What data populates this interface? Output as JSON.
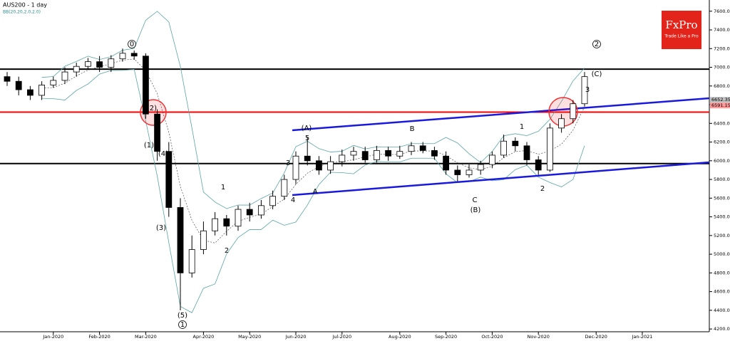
{
  "chart_data": {
    "type": "candlestick",
    "title": "AUS200 - 1 day",
    "indicator": "BB(20,20,2.0,2.0)",
    "logo": {
      "brand": "FxPro",
      "tagline": "Trade Like a Pro"
    },
    "categories": [
      null,
      null,
      null,
      null,
      "Jan-2020",
      null,
      null,
      null,
      "Feb-2020",
      null,
      null,
      null,
      "Mar-2020",
      null,
      null,
      null,
      null,
      "Apr-2020",
      null,
      null,
      null,
      "May-2020",
      null,
      null,
      null,
      "Jun-2020",
      null,
      null,
      null,
      "Jul-2020",
      null,
      null,
      null,
      null,
      "Aug-2020",
      null,
      null,
      null,
      "Sep-2020",
      null,
      null,
      null,
      "Oct-2020",
      null,
      null,
      null,
      "Nov-2020",
      null,
      null,
      null,
      null,
      "Dec-2020",
      null,
      null,
      null,
      "Jan-2021",
      null,
      null,
      null,
      null,
      null
    ],
    "open": [
      6900,
      6850,
      6760,
      6700,
      6810,
      6860,
      6950,
      7010,
      7060,
      7000,
      7090,
      7150,
      7120,
      6500,
      6100,
      5500,
      4800,
      5050,
      5250,
      5380,
      5300,
      5480,
      5420,
      5520,
      5620,
      5800,
      6050,
      6000,
      5900,
      5990,
      6060,
      6100,
      6010,
      6110,
      6050,
      6100,
      6160,
      6110,
      6050,
      5900,
      5850,
      5900,
      5960,
      6060,
      6210,
      6160,
      6010,
      5900,
      6350,
      6450,
      6610,
      null,
      null,
      null,
      null,
      null,
      null,
      null,
      null,
      null,
      null
    ],
    "high": [
      6950,
      6900,
      6800,
      6850,
      6900,
      7000,
      7050,
      7100,
      7120,
      7130,
      7200,
      7180,
      7150,
      6550,
      6200,
      5600,
      5200,
      5350,
      5450,
      5420,
      5520,
      5550,
      5580,
      5680,
      5850,
      6100,
      6250,
      6050,
      6050,
      6120,
      6150,
      6150,
      6160,
      6150,
      6160,
      6200,
      6200,
      6150,
      6100,
      5950,
      5960,
      6000,
      6100,
      6280,
      6250,
      6200,
      6050,
      6400,
      6500,
      6650,
      6950,
      null,
      null,
      null,
      null,
      null,
      null,
      null,
      null,
      null,
      null
    ],
    "low": [
      6800,
      6700,
      6650,
      6650,
      6780,
      6820,
      6900,
      6980,
      6950,
      6950,
      7060,
      7080,
      6450,
      6000,
      5400,
      4400,
      4750,
      5000,
      5200,
      5200,
      5250,
      5350,
      5380,
      5480,
      5580,
      5750,
      5950,
      5850,
      5860,
      5940,
      6000,
      5980,
      5980,
      6000,
      6020,
      6060,
      6080,
      6010,
      5850,
      5780,
      5820,
      5850,
      5920,
      6030,
      6100,
      5950,
      5850,
      5880,
      6300,
      6400,
      6580,
      null,
      null,
      null,
      null,
      null,
      null,
      null,
      null,
      null,
      null
    ],
    "close": [
      6850,
      6760,
      6700,
      6810,
      6860,
      6950,
      7010,
      7060,
      7000,
      7090,
      7150,
      7120,
      6500,
      6100,
      5500,
      4800,
      5050,
      5250,
      5380,
      5300,
      5480,
      5420,
      5520,
      5620,
      5800,
      6050,
      6000,
      5900,
      5990,
      6060,
      6100,
      6010,
      6110,
      6050,
      6100,
      6160,
      6110,
      6050,
      5900,
      5850,
      5900,
      5960,
      6060,
      6210,
      6160,
      6010,
      5900,
      6350,
      6450,
      6610,
      6900,
      null,
      null,
      null,
      null,
      null,
      null,
      null,
      null,
      null,
      null
    ],
    "ylim": [
      4140,
      7720
    ],
    "yticks": [
      {
        "value": 4200,
        "label": "4200.00"
      },
      {
        "value": 4400,
        "label": "4400.00"
      },
      {
        "value": 4600,
        "label": "4600.00"
      },
      {
        "value": 4800,
        "label": "4800.00"
      },
      {
        "value": 5000,
        "label": "5000.00"
      },
      {
        "value": 5200,
        "label": "5200.00"
      },
      {
        "value": 5400,
        "label": "5400.00"
      },
      {
        "value": 5600,
        "label": "5600.00"
      },
      {
        "value": 5800,
        "label": "5800.00"
      },
      {
        "value": 6000,
        "label": "6000.00"
      },
      {
        "value": 6200,
        "label": "6200.00"
      },
      {
        "value": 6400,
        "label": "6400.00"
      },
      {
        "value": 6600,
        "label": "6600.00"
      },
      {
        "value": 6800,
        "label": "6800.00"
      },
      {
        "value": 7000,
        "label": "7000.00"
      },
      {
        "value": 7200,
        "label": "7200.00"
      },
      {
        "value": 7400,
        "label": "7400.00"
      },
      {
        "value": 7600,
        "label": "7600.00"
      }
    ],
    "levels": [
      {
        "value": 6980,
        "color": "#000000"
      },
      {
        "value": 6520,
        "color": "#ff0000"
      },
      {
        "value": 5970,
        "color": "#000000"
      }
    ],
    "price_tags": [
      {
        "value": 6652.35,
        "color": "#c0c0c0"
      },
      {
        "value": 6591.15,
        "color": "#ff9999"
      }
    ],
    "annotations": [
      "0",
      "(2)",
      "(1)",
      "(4)",
      "(3)",
      "(5)",
      "1",
      "1",
      "2",
      "(A)",
      "5",
      "3",
      "4",
      "A",
      "B",
      "C",
      "(B)",
      "1",
      "2",
      "2",
      "(C)",
      "3"
    ]
  }
}
